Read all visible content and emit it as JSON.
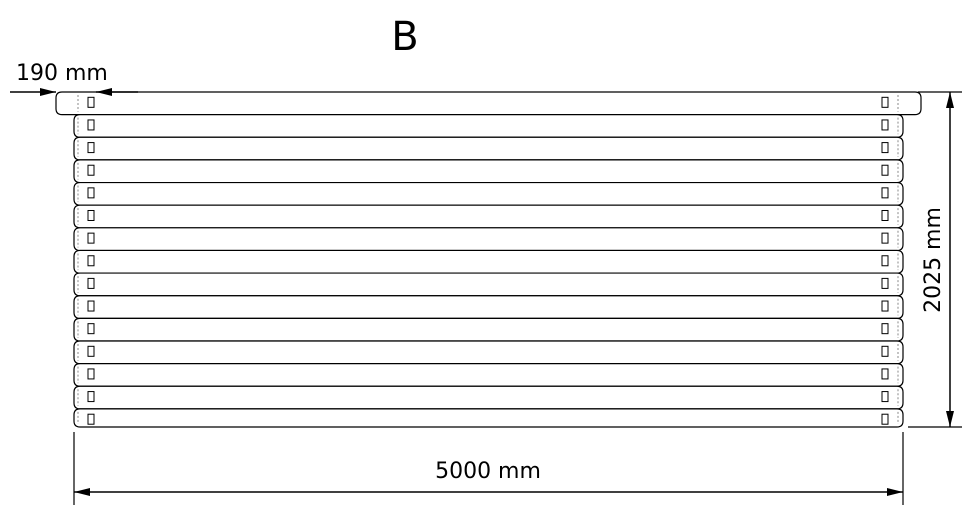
{
  "drawing": {
    "title": "B",
    "log_count": 15,
    "dimensions": {
      "log_width": "190 mm",
      "height": "2025 mm",
      "length": "5000 mm"
    }
  }
}
